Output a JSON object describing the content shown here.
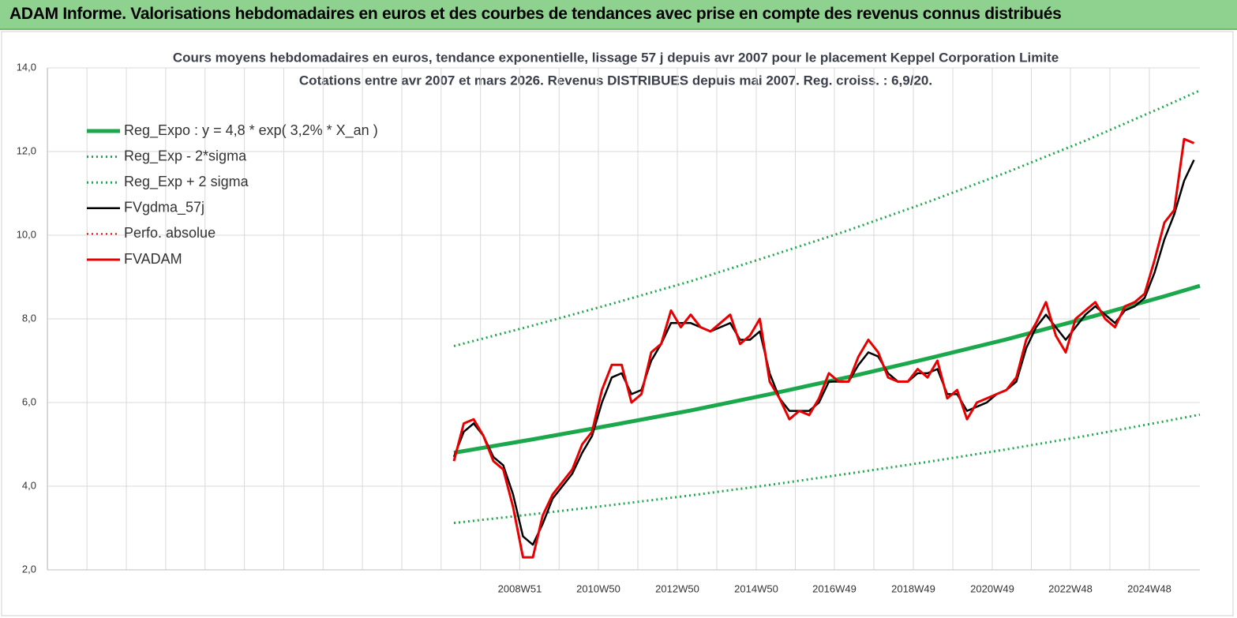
{
  "header": {
    "title": "ADAM Informe. Valorisations hebdomadaires en euros et des courbes de tendances avec prise en compte des revenus connus distribués"
  },
  "chart_data": {
    "type": "line",
    "title": "Cours moyens hebdomadaires en euros, tendance exponentielle, lissage 57 j depuis avr 2007 pour le placement Keppel Corporation Limite",
    "subtitle": "Cotations entre avr 2007 et mars 2026.  Revenus DISTRIBUES depuis mai 2007. Reg. croiss. : 6,9/20.",
    "xlim": [
      1997.0,
      2026.2
    ],
    "xticks": [
      {
        "value": 2008.97,
        "label": "2008W51"
      },
      {
        "value": 2010.96,
        "label": "2010W50"
      },
      {
        "value": 2012.96,
        "label": "2012W50"
      },
      {
        "value": 2014.96,
        "label": "2014W50"
      },
      {
        "value": 2016.94,
        "label": "2016W49"
      },
      {
        "value": 2018.94,
        "label": "2018W49"
      },
      {
        "value": 2020.94,
        "label": "2020W49"
      },
      {
        "value": 2022.92,
        "label": "2022W48"
      },
      {
        "value": 2024.92,
        "label": "2024W48"
      }
    ],
    "ylim": [
      2,
      14
    ],
    "yticks": [
      {
        "value": 2,
        "label": "2,0"
      },
      {
        "value": 4,
        "label": "4,0"
      },
      {
        "value": 6,
        "label": "6,0"
      },
      {
        "value": 8,
        "label": "8,0"
      },
      {
        "value": 10,
        "label": "10,0"
      },
      {
        "value": 12,
        "label": "12,0"
      },
      {
        "value": 14,
        "label": "14,0"
      }
    ],
    "grid": true,
    "x": [
      2007.3,
      2007.55,
      2007.8,
      2008.05,
      2008.3,
      2008.55,
      2008.8,
      2009.05,
      2009.3,
      2009.55,
      2009.8,
      2010.05,
      2010.3,
      2010.55,
      2010.8,
      2011.05,
      2011.3,
      2011.55,
      2011.8,
      2012.05,
      2012.3,
      2012.55,
      2012.8,
      2013.05,
      2013.3,
      2013.55,
      2013.8,
      2014.05,
      2014.3,
      2014.55,
      2014.8,
      2015.05,
      2015.3,
      2015.55,
      2015.8,
      2016.05,
      2016.3,
      2016.55,
      2016.8,
      2017.05,
      2017.3,
      2017.55,
      2017.8,
      2018.05,
      2018.3,
      2018.55,
      2018.8,
      2019.05,
      2019.3,
      2019.55,
      2019.8,
      2020.05,
      2020.3,
      2020.55,
      2020.8,
      2021.05,
      2021.3,
      2021.55,
      2021.8,
      2022.05,
      2022.3,
      2022.55,
      2022.8,
      2023.05,
      2023.3,
      2023.55,
      2023.8,
      2024.05,
      2024.3,
      2024.55,
      2024.8,
      2025.05,
      2025.3,
      2025.55,
      2025.8,
      2026.05
    ],
    "series": [
      {
        "name": "Reg_Expo : y = 4,8 * exp( 3,2% *  X_an )",
        "color": "#1ba84c",
        "style": "solid",
        "width": 5,
        "x": [
          2007.3,
          2009.3,
          2011.3,
          2013.3,
          2015.3,
          2017.3,
          2019.3,
          2021.3,
          2023.3,
          2025.3,
          2026.2
        ],
        "values": [
          4.8,
          5.12,
          5.46,
          5.81,
          6.2,
          6.61,
          7.05,
          7.51,
          8.01,
          8.54,
          8.79
        ]
      },
      {
        "name": "Reg_Exp - 2*sigma",
        "color": "#1ba84c",
        "style": "dotted",
        "width": 3,
        "x": [
          2007.3,
          2009.3,
          2011.3,
          2013.3,
          2015.3,
          2017.3,
          2019.3,
          2021.3,
          2023.3,
          2025.3,
          2026.2
        ],
        "values": [
          3.12,
          3.33,
          3.55,
          3.78,
          4.03,
          4.3,
          4.58,
          4.88,
          5.2,
          5.55,
          5.71
        ]
      },
      {
        "name": "Reg_Exp + 2 sigma",
        "color": "#1ba84c",
        "style": "dotted",
        "width": 3,
        "x": [
          2007.3,
          2009.3,
          2011.3,
          2013.3,
          2015.3,
          2017.3,
          2019.3,
          2021.3,
          2023.3,
          2025.3,
          2026.2
        ],
        "values": [
          7.35,
          7.84,
          8.36,
          8.9,
          9.5,
          10.12,
          10.79,
          11.5,
          12.26,
          13.08,
          13.46
        ]
      },
      {
        "name": "FVgdma_57j",
        "color": "#000000",
        "style": "solid",
        "width": 2.5,
        "values": [
          4.7,
          5.3,
          5.5,
          5.2,
          4.7,
          4.5,
          3.8,
          2.8,
          2.6,
          3.1,
          3.7,
          4.0,
          4.3,
          4.8,
          5.2,
          6.0,
          6.6,
          6.7,
          6.2,
          6.3,
          7.0,
          7.4,
          7.9,
          7.9,
          7.9,
          7.8,
          7.7,
          7.8,
          7.9,
          7.5,
          7.5,
          7.7,
          6.7,
          6.1,
          5.8,
          5.8,
          5.8,
          6.0,
          6.5,
          6.5,
          6.5,
          6.9,
          7.2,
          7.1,
          6.7,
          6.5,
          6.5,
          6.7,
          6.7,
          6.8,
          6.2,
          6.2,
          5.8,
          5.9,
          6.0,
          6.2,
          6.3,
          6.5,
          7.3,
          7.8,
          8.1,
          7.8,
          7.5,
          7.8,
          8.1,
          8.3,
          8.1,
          7.9,
          8.2,
          8.3,
          8.5,
          9.1,
          9.9,
          10.5,
          11.3,
          11.8
        ]
      },
      {
        "name": "Perfo. absolue",
        "color": "#e00000",
        "style": "dotted",
        "width": 2,
        "x": [],
        "values": []
      },
      {
        "name": "FVADAM",
        "color": "#e80000",
        "style": "solid",
        "width": 3,
        "values": [
          4.6,
          5.5,
          5.6,
          5.2,
          4.6,
          4.4,
          3.5,
          2.3,
          2.3,
          3.3,
          3.8,
          4.1,
          4.4,
          5.0,
          5.3,
          6.3,
          6.9,
          6.9,
          6.0,
          6.2,
          7.2,
          7.4,
          8.2,
          7.8,
          8.1,
          7.8,
          7.7,
          7.9,
          8.1,
          7.4,
          7.6,
          8.0,
          6.5,
          6.1,
          5.6,
          5.8,
          5.7,
          6.1,
          6.7,
          6.5,
          6.5,
          7.1,
          7.5,
          7.2,
          6.6,
          6.5,
          6.5,
          6.8,
          6.6,
          7.0,
          6.1,
          6.3,
          5.6,
          6.0,
          6.1,
          6.2,
          6.3,
          6.6,
          7.5,
          7.9,
          8.4,
          7.6,
          7.2,
          8.0,
          8.2,
          8.4,
          8.0,
          7.8,
          8.3,
          8.4,
          8.6,
          9.4,
          10.3,
          10.6,
          12.3,
          12.2
        ]
      }
    ]
  }
}
